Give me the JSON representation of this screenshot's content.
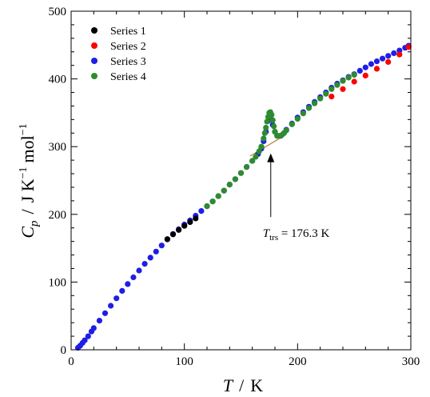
{
  "chart_data": {
    "type": "scatter",
    "xlabel": {
      "symbol": "T",
      "unit": "K"
    },
    "ylabel": {
      "symbol": "C",
      "subscript": "p",
      "unit_text": "J K",
      "unit_exp1": "−1",
      "unit_text2": "mol",
      "unit_exp2": "−1"
    },
    "xlim": [
      0,
      300
    ],
    "ylim": [
      0,
      500
    ],
    "x_ticks": [
      "0",
      "100",
      "200",
      "300"
    ],
    "y_ticks": [
      "0",
      "100",
      "200",
      "300",
      "400",
      "500"
    ],
    "x_tick_values": [
      0,
      100,
      200,
      300
    ],
    "y_tick_values": [
      0,
      100,
      200,
      300,
      400,
      500
    ],
    "legend_position": "top-left",
    "annotation": {
      "symbol": "T",
      "subscript": "trs",
      "value_text": " = 176.3 K",
      "arrow_tip": [
        176.3,
        290
      ],
      "arrow_tail": [
        176.3,
        196
      ]
    },
    "baseline": {
      "x": [
        158,
        185
      ],
      "y": [
        286,
        313
      ],
      "color": "#c08040"
    },
    "series": [
      {
        "name": "Series 1",
        "color": "#000000",
        "x": [
          85,
          90,
          95,
          100,
          105,
          110
        ],
        "y": [
          163.5,
          170.5,
          177,
          183,
          188.5,
          194
        ]
      },
      {
        "name": "Series 2",
        "color": "#ff0000",
        "x": [
          230,
          240,
          250,
          260,
          270,
          280,
          290,
          298
        ],
        "y": [
          374,
          385,
          396,
          405,
          415,
          425,
          436,
          447
        ]
      },
      {
        "name": "Series 3",
        "color": "#1e1ee6",
        "x": [
          6,
          8,
          10,
          12,
          15,
          18,
          20,
          25,
          30,
          35,
          40,
          45,
          50,
          55,
          60,
          65,
          70,
          75,
          80,
          85,
          90,
          95,
          100,
          105,
          110,
          115,
          120,
          125,
          130,
          135,
          140,
          145,
          150,
          155,
          160,
          165,
          168,
          170,
          172,
          174,
          175,
          176,
          177,
          178,
          180,
          182,
          185,
          188,
          190,
          195,
          200,
          205,
          210,
          215,
          220,
          225,
          230,
          235,
          240,
          245,
          250,
          255,
          260,
          265,
          270,
          275,
          280,
          285,
          290,
          295,
          298
        ],
        "y": [
          3,
          6,
          10,
          14,
          20,
          27,
          32,
          43,
          54,
          65,
          76,
          87,
          97,
          107,
          117,
          127,
          136,
          145,
          154,
          163,
          171,
          178,
          185,
          191,
          198,
          205,
          212,
          219,
          227,
          235,
          244,
          252,
          261,
          270,
          279,
          289,
          297,
          308,
          322,
          338,
          344,
          345,
          340,
          332,
          322,
          316,
          316,
          320,
          325,
          334,
          343,
          351,
          359,
          366,
          373,
          380,
          387,
          393,
          398,
          403,
          407,
          412,
          417,
          422,
          426,
          430,
          434,
          438,
          442,
          446,
          449
        ]
      },
      {
        "name": "Series 4",
        "color": "#2e8b2e",
        "x": [
          120,
          125,
          130,
          135,
          140,
          145,
          150,
          155,
          160,
          163,
          166,
          168,
          170,
          171,
          172,
          173,
          174,
          175,
          176,
          177,
          178,
          179,
          180,
          182,
          184,
          186,
          188,
          190,
          195,
          200,
          205,
          210,
          215,
          220,
          225,
          230,
          235,
          240,
          245,
          250
        ],
        "y": [
          212,
          219,
          227,
          235,
          244,
          252,
          261,
          270,
          279,
          285,
          293,
          300,
          312,
          320,
          328,
          337,
          344,
          350,
          351,
          347,
          339,
          330,
          322,
          316,
          316,
          317,
          320,
          324,
          333,
          341,
          349,
          357,
          364,
          371,
          378,
          385,
          391,
          397,
          402,
          406
        ]
      }
    ]
  }
}
